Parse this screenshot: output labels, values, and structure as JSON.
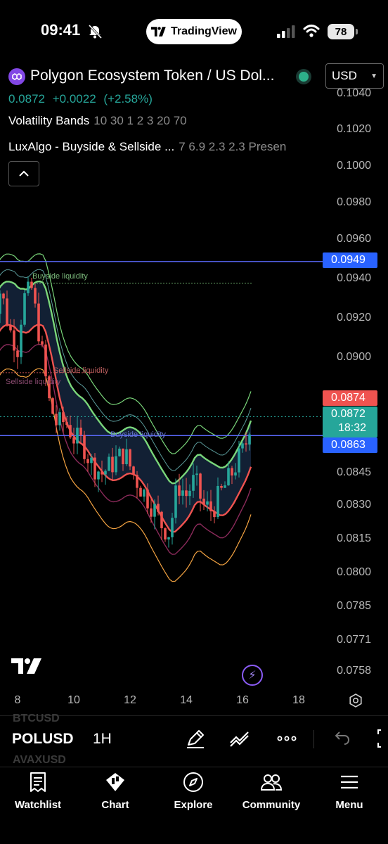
{
  "status_bar": {
    "time": "09:41",
    "app_pill": "TradingView",
    "battery": "78"
  },
  "header": {
    "symbol_title": "Polygon Ecosystem Token / US Dol...",
    "currency": "USD",
    "last_price": "0.0872",
    "change": "+0.0022",
    "change_pct": "(+2.58%)"
  },
  "indicators": [
    {
      "name": "Volatility Bands",
      "params": "10 30 1 2 3 20 70"
    },
    {
      "name": "LuxAlgo - Buyside & Sellside ...",
      "params": "7 6.9 2.3 2.3 Presen"
    }
  ],
  "price_axis": {
    "ticks": [
      "0.1040",
      "0.1020",
      "0.1000",
      "0.0980",
      "0.0960",
      "0.0940",
      "0.0920",
      "0.0900",
      "0.0845",
      "0.0830",
      "0.0815",
      "0.0800",
      "0.0785",
      "0.0771",
      "0.0758"
    ],
    "badges": {
      "upper_level": "0.0949",
      "high": "0.0874",
      "last": "0.0872",
      "countdown": "18:32",
      "lower_level": "0.0863"
    }
  },
  "time_axis": {
    "ticks": [
      "8",
      "10",
      "12",
      "14",
      "16",
      "18"
    ]
  },
  "annotations": {
    "buyside_top": "Buyside liquidity",
    "sellside_1": "Sellside liquidity",
    "sellside_2": "Sellside liquidity",
    "buyside_bottom": "Buyside liquidity"
  },
  "toolbar": {
    "ghost_above": "BTCUSD",
    "symbol": "POLUSD",
    "ghost_below": "AVAXUSD",
    "interval": "1H"
  },
  "bottom_nav": [
    {
      "label": "Watchlist",
      "icon": "watchlist-icon"
    },
    {
      "label": "Chart",
      "icon": "chart-icon"
    },
    {
      "label": "Explore",
      "icon": "compass-icon"
    },
    {
      "label": "Community",
      "icon": "community-icon"
    },
    {
      "label": "Menu",
      "icon": "menu-icon"
    }
  ],
  "colors": {
    "up": "#26a69a",
    "down": "#ef5350",
    "level_line": "#5c6bff",
    "band_green": "#7ad67a",
    "band_red": "#ef5350",
    "band_orange": "#f5a442",
    "band_purple": "#8a2a5a",
    "cloud": "#14233a"
  },
  "chart_data": {
    "type": "candlestick",
    "x_ticks": [
      "8",
      "10",
      "12",
      "14",
      "16",
      "18"
    ],
    "y_ticks": [
      0.104,
      0.102,
      0.1,
      0.098,
      0.096,
      0.094,
      0.092,
      0.09,
      0.0845,
      0.083,
      0.0815,
      0.08,
      0.0785,
      0.0771,
      0.0758
    ],
    "horizontal_levels": [
      0.0949,
      0.0863
    ],
    "last_price": 0.0872,
    "session_high": 0.0874,
    "close_path": [
      [
        7.0,
        0.0915
      ],
      [
        7.4,
        0.0935
      ],
      [
        7.7,
        0.0915
      ],
      [
        8.0,
        0.0905
      ],
      [
        8.2,
        0.093
      ],
      [
        8.5,
        0.0935
      ],
      [
        8.7,
        0.0918
      ],
      [
        8.9,
        0.09
      ],
      [
        9.1,
        0.088
      ],
      [
        9.4,
        0.0868
      ],
      [
        9.7,
        0.087
      ],
      [
        10.0,
        0.0862
      ],
      [
        10.3,
        0.086
      ],
      [
        10.6,
        0.085
      ],
      [
        11.0,
        0.0845
      ],
      [
        11.4,
        0.085
      ],
      [
        11.8,
        0.0855
      ],
      [
        12.1,
        0.0845
      ],
      [
        12.4,
        0.0838
      ],
      [
        12.8,
        0.083
      ],
      [
        13.1,
        0.0822
      ],
      [
        13.4,
        0.0818
      ],
      [
        13.7,
        0.084
      ],
      [
        14.0,
        0.0835
      ],
      [
        14.3,
        0.0842
      ],
      [
        14.6,
        0.083
      ],
      [
        14.9,
        0.0828
      ],
      [
        15.2,
        0.0835
      ],
      [
        15.5,
        0.0842
      ],
      [
        15.8,
        0.085
      ],
      [
        16.1,
        0.0858
      ],
      [
        16.3,
        0.0872
      ]
    ]
  }
}
